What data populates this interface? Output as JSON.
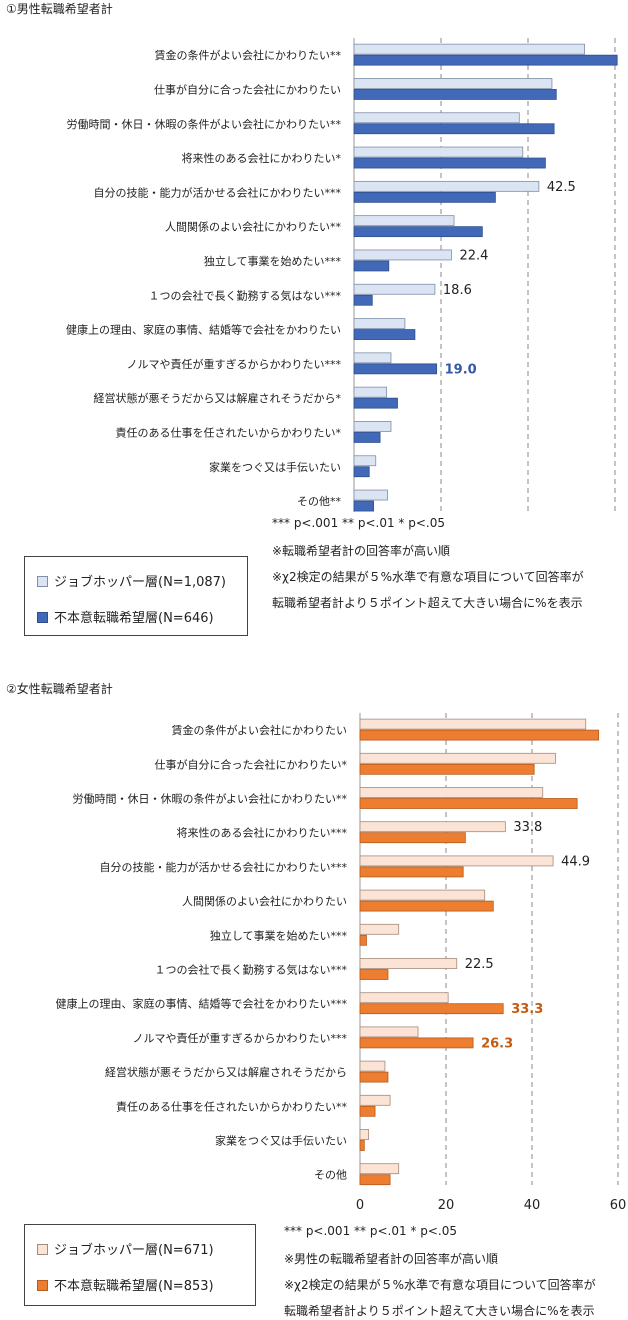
{
  "chart_data": [
    {
      "type": "bar",
      "orientation": "horizontal",
      "title": "①男性転職希望者計",
      "categories": [
        "賃金の条件がよい会社にかわりたい**",
        "仕事が自分に合った会社にかわりたい",
        "労働時間・休日・休暇の条件がよい会社にかわりたい**",
        "将来性のある会社にかわりたい*",
        "自分の技能・能力が活かせる会社にかわりたい***",
        "人間関係のよい会社にかわりたい**",
        "独立して事業を始めたい***",
        "１つの会社で長く勤務する気はない***",
        "健康上の理由、家庭の事情、結婚等で会社をかわりたい",
        "ノルマや責任が重すぎるからかわりたい***",
        "経営状態が悪そうだから又は解雇されそうだから*",
        "責任のある仕事を任されたいからかわりたい*",
        "家業をつぐ又は手伝いたい",
        "その他**"
      ],
      "series": [
        {
          "name": "ジョブホッパー層(N=1,087)",
          "color": "#dbe4f2",
          "stroke": "#7f8fa8",
          "values": [
            53.0,
            45.5,
            38.0,
            38.8,
            42.5,
            23.0,
            22.4,
            18.6,
            11.7,
            8.5,
            7.5,
            8.5,
            5.0,
            7.7
          ],
          "labels": [
            "",
            "",
            "",
            "",
            "42.5",
            "",
            "22.4",
            "18.6",
            "",
            "",
            "",
            "",
            "",
            ""
          ]
        },
        {
          "name": "不本意転職希望層(N=646)",
          "color": "#4169b8",
          "stroke": "#2e4f8f",
          "values": [
            60.5,
            46.5,
            46.0,
            44.0,
            32.5,
            29.5,
            8.0,
            4.2,
            14.0,
            19.0,
            10.0,
            6.0,
            3.5,
            4.5
          ],
          "labels": [
            "",
            "",
            "",
            "",
            "",
            "",
            "",
            "",
            "",
            "19.0",
            "",
            "",
            "",
            ""
          ],
          "label_color": "#3458a8"
        }
      ],
      "xlim": [
        0,
        60
      ],
      "grid": true,
      "notes": [
        "*** p<.001 ** p<.01 * p<.05",
        "※転職希望者計の回答率が高い順",
        "※χ2検定の結果が５%水準で有意な項目について回答率が",
        "転職希望者計より５ポイント超えて大きい場合に%を表示"
      ]
    },
    {
      "type": "bar",
      "orientation": "horizontal",
      "title": "②女性転職希望者計",
      "categories": [
        "賃金の条件がよい会社にかわりたい",
        "仕事が自分に合った会社にかわりたい*",
        "労働時間・休日・休暇の条件がよい会社にかわりたい**",
        "将来性のある会社にかわりたい***",
        "自分の技能・能力が活かせる会社にかわりたい***",
        "人間関係のよい会社にかわりたい",
        "独立して事業を始めたい***",
        "１つの会社で長く勤務する気はない***",
        "健康上の理由、家庭の事情、結婚等で会社をかわりたい***",
        "ノルマや責任が重すぎるからかわりたい***",
        "経営状態が悪そうだから又は解雇されそうだから",
        "責任のある仕事を任されたいからかわりたい**",
        "家業をつぐ又は手伝いたい",
        "その他"
      ],
      "series": [
        {
          "name": "ジョブホッパー層(N=671)",
          "color": "#fbe3d6",
          "stroke": "#a58b7d",
          "values": [
            52.5,
            45.5,
            42.5,
            33.8,
            44.9,
            29.0,
            9.0,
            22.5,
            20.5,
            13.5,
            5.8,
            7.0,
            2.0,
            9.0
          ],
          "labels": [
            "",
            "",
            "",
            "33.8",
            "44.9",
            "",
            "",
            "22.5",
            "",
            "",
            "",
            "",
            "",
            ""
          ]
        },
        {
          "name": "不本意転職希望層(N=853)",
          "color": "#ed7d31",
          "stroke": "#b55b1c",
          "values": [
            55.5,
            40.5,
            50.5,
            24.5,
            24.0,
            31.0,
            1.5,
            6.5,
            33.3,
            26.3,
            6.5,
            3.5,
            1.0,
            7.0
          ],
          "labels": [
            "",
            "",
            "",
            "",
            "",
            "",
            "",
            "",
            "33.3",
            "26.3",
            "",
            "",
            "",
            ""
          ],
          "label_color": "#c55a11"
        }
      ],
      "xlim": [
        0,
        60
      ],
      "xticks": [
        "0",
        "20",
        "40",
        "60"
      ],
      "grid": true,
      "notes": [
        "*** p<.001 ** p<.01 * p<.05",
        "※男性の転職希望者計の回答率が高い順",
        "※χ2検定の結果が５%水準で有意な項目について回答率が",
        "転職希望者計より５ポイント超えて大きい場合に%を表示"
      ]
    }
  ]
}
